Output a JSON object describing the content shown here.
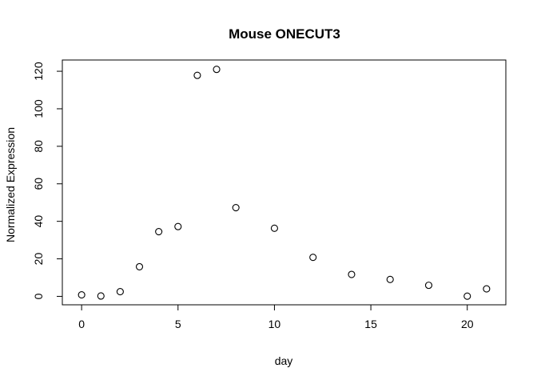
{
  "chart_data": {
    "type": "scatter",
    "title": "Mouse ONECUT3",
    "xlabel": "day",
    "ylabel": "Normalized Expression",
    "xlim": [
      -1,
      22
    ],
    "ylim": [
      -4.5,
      126
    ],
    "xticks": [
      0,
      5,
      10,
      15,
      20
    ],
    "yticks": [
      0,
      20,
      40,
      60,
      80,
      100,
      120
    ],
    "grid": false,
    "legend": "none",
    "marker": "open-circle",
    "marker_color": "#000000",
    "x": [
      0,
      1,
      2,
      3,
      4,
      5,
      6,
      7,
      8,
      10,
      12,
      14,
      16,
      18,
      20,
      21
    ],
    "y": [
      0.8,
      0.2,
      2.5,
      15.8,
      34.5,
      37.2,
      117.8,
      121.0,
      47.3,
      36.3,
      20.8,
      11.7,
      9.0,
      5.9,
      0.1,
      4.0
    ]
  }
}
